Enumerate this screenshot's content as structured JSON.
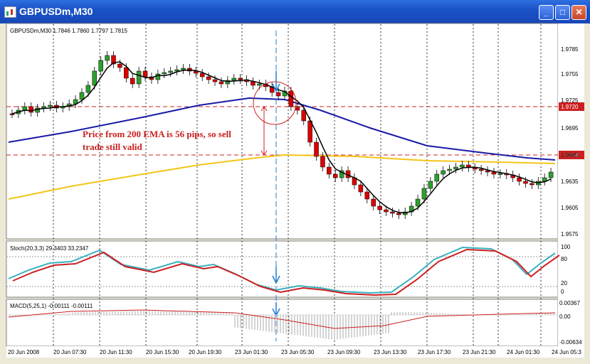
{
  "window": {
    "title": "GBPUSDm,M30"
  },
  "price_panel": {
    "header": "GBPUSDm,M30  1.7846 1.7860 1.7797 1.7815",
    "y_ticks": [
      "1.9785",
      "1.9755",
      "1.9725",
      "1.9695",
      "1.9665",
      "1.9635",
      "1.9605",
      "1.9575"
    ],
    "price_tag_upper": "1.9720",
    "price_tag_lower": "1.9664",
    "annotation_line1": "Price from 200 EMA is 56 pips, so sell",
    "annotation_line2": "trade still valid"
  },
  "stoch_panel": {
    "header": "Stoch(20,3,3) 29.3403 33.2347",
    "y_ticks": [
      "100",
      "80",
      "20",
      "0"
    ]
  },
  "macd_panel": {
    "header": "MACD(5,25,1) -0.00111 -0.00111",
    "y_ticks": [
      "0.00367",
      "0.00",
      "-0.00634"
    ]
  },
  "x_axis": {
    "labels": [
      "20 Jun 2008",
      "20 Jun 07:30",
      "20 Jun 11:30",
      "20 Jun 15:30",
      "20 Jun 19:30",
      "23 Jun 01:30",
      "23 Jun 05:30",
      "23 Jun 09:30",
      "23 Jun 13:30",
      "23 Jun 17:30",
      "23 Jun 21:30",
      "24 Jun 01:30",
      "24 Jun 05:3"
    ]
  },
  "colors": {
    "bull": "#2ca02c",
    "bear": "#dd0000",
    "ema_fast": "#000000",
    "ema_slow": "#1a1aa8",
    "ema_200": "#f5c518",
    "stoch_main": "#3ab0c0",
    "stoch_signal": "#cc2020",
    "annotation": "#cc2020",
    "guide": "#1e7fd0"
  }
}
